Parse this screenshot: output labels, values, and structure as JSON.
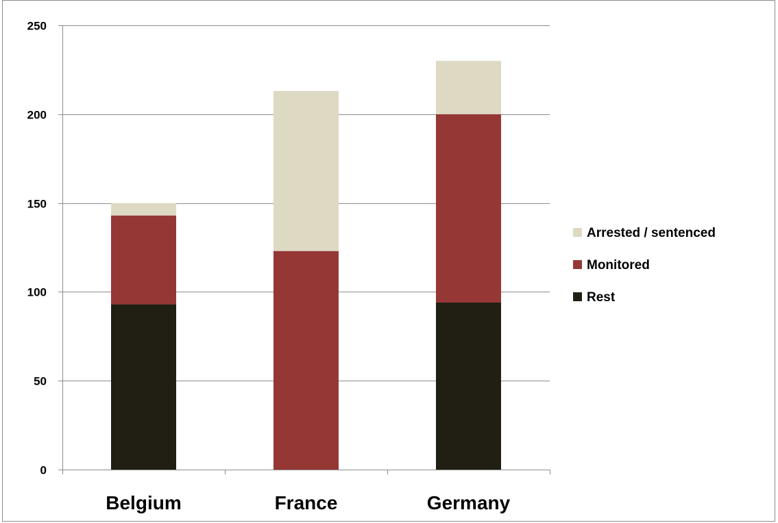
{
  "chart_data": {
    "type": "bar",
    "stacked": true,
    "categories": [
      "Belgium",
      "France",
      "Germany"
    ],
    "series": [
      {
        "name": "Rest",
        "values": [
          93,
          0,
          94
        ],
        "color": "#211e13"
      },
      {
        "name": "Monitored",
        "values": [
          50,
          123,
          106
        ],
        "color": "#953735"
      },
      {
        "name": "Arrested / sentenced",
        "values": [
          7,
          90,
          30
        ],
        "color": "#ddd9c3"
      }
    ],
    "title": "",
    "xlabel": "",
    "ylabel": "",
    "ylim": [
      0,
      250
    ],
    "yticks": [
      0,
      50,
      100,
      150,
      200,
      250
    ],
    "grid": true,
    "legend": "right",
    "legend_order": [
      "Arrested / sentenced",
      "Monitored",
      "Rest"
    ]
  }
}
